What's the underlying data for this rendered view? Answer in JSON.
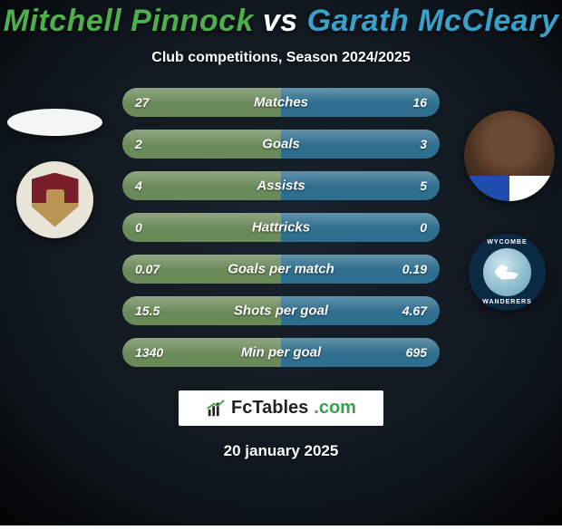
{
  "background": {
    "color_top": "#1a2430",
    "color_bottom": "#0a0f15",
    "vignette": "#000000"
  },
  "title": {
    "text": "Mitchell Pinnock vs Garath McCleary",
    "left_color": "#4db04d",
    "right_color": "#3aa0c9",
    "vs_color": "#ffffff",
    "fontsize": 34
  },
  "subtitle": "Club competitions, Season 2024/2025",
  "stats": {
    "row_bg_left": "#6b8a5a",
    "row_bg_right": "#2e6e8e",
    "label_fontsize": 15,
    "value_fontsize": 14,
    "rows": [
      {
        "label": "Matches",
        "left": "27",
        "right": "16"
      },
      {
        "label": "Goals",
        "left": "2",
        "right": "3"
      },
      {
        "label": "Assists",
        "left": "4",
        "right": "5"
      },
      {
        "label": "Hattricks",
        "left": "0",
        "right": "0"
      },
      {
        "label": "Goals per match",
        "left": "0.07",
        "right": "0.19"
      },
      {
        "label": "Shots per goal",
        "left": "15.5",
        "right": "4.67"
      },
      {
        "label": "Min per goal",
        "left": "1340",
        "right": "695"
      }
    ]
  },
  "crest_right": {
    "ring_color": "#0b2a44",
    "ring_text_top": "WYCOMBE",
    "ring_text_bottom": "WANDERERS"
  },
  "branding": {
    "part1": "FcTables",
    "part2": ".com"
  },
  "date": "20 january 2025"
}
